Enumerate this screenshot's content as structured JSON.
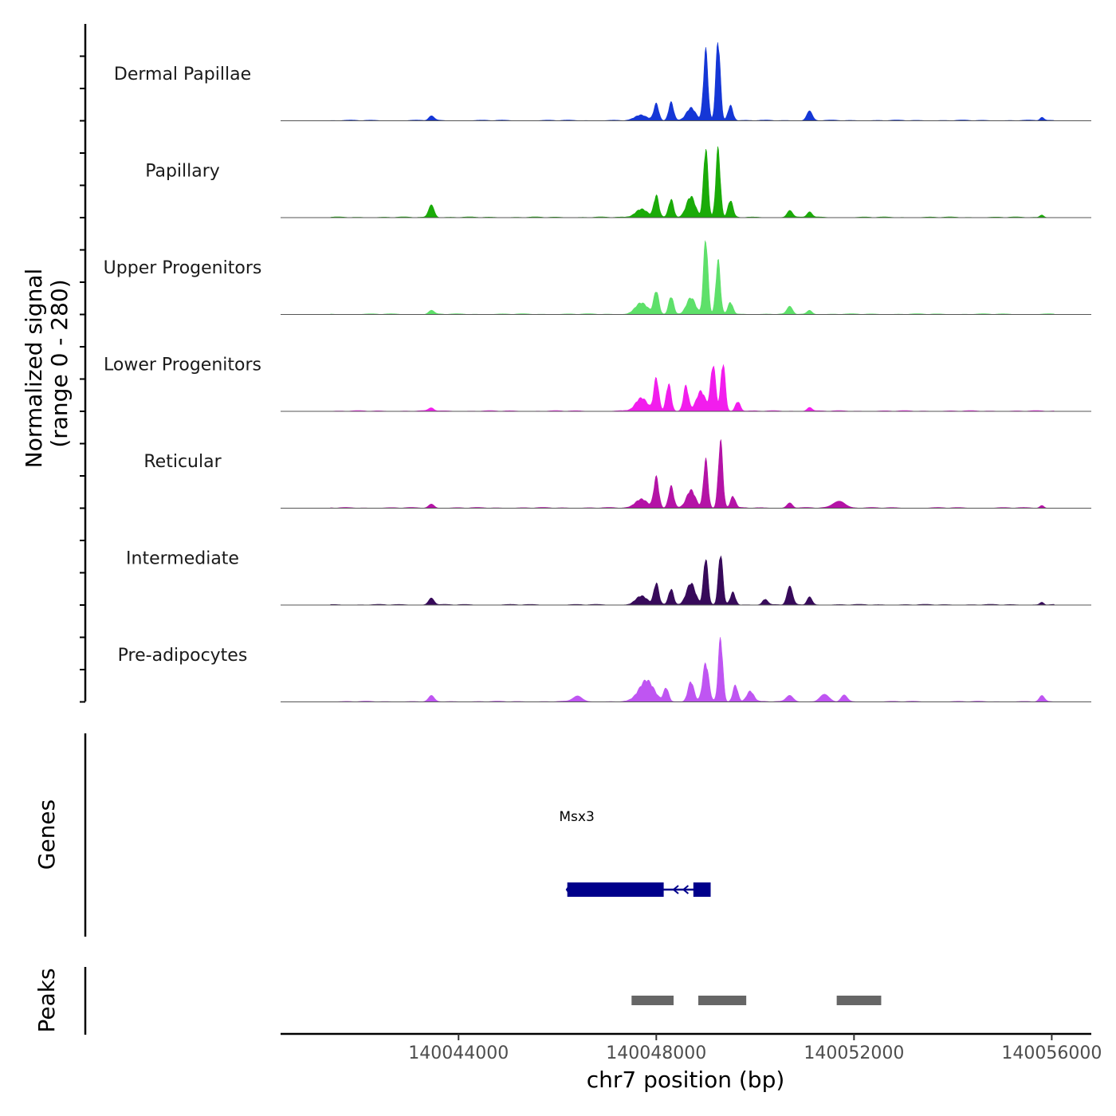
{
  "chart_data": {
    "type": "area",
    "chromosome": "chr7",
    "xlabel": "chr7 position (bp)",
    "x_range": [
      140040400,
      140056800
    ],
    "x_ticks": [
      140044000,
      140048000,
      140052000,
      140056000
    ],
    "x_tick_labels": [
      "140044000",
      "140048000",
      "140052000",
      "140056000"
    ],
    "ylabel_line1": "Normalized signal",
    "ylabel_line2": "(range 0 - 280)",
    "y_range": [
      0,
      280
    ],
    "coverage_tracks": [
      {
        "name": "Dermal Papillae",
        "color": "#1537d6",
        "peaks": [
          [
            140043450,
            14,
            55
          ],
          [
            140047700,
            18,
            120
          ],
          [
            140048000,
            55,
            50
          ],
          [
            140048300,
            60,
            50
          ],
          [
            140048700,
            42,
            90
          ],
          [
            140049000,
            230,
            45
          ],
          [
            140049250,
            265,
            45
          ],
          [
            140049500,
            50,
            50
          ],
          [
            140051100,
            30,
            55
          ],
          [
            140055800,
            10,
            40
          ]
        ]
      },
      {
        "name": "Papillary",
        "color": "#1aab08",
        "peaks": [
          [
            140043450,
            40,
            55
          ],
          [
            140047700,
            28,
            120
          ],
          [
            140048000,
            72,
            50
          ],
          [
            140048300,
            58,
            50
          ],
          [
            140048700,
            68,
            90
          ],
          [
            140049000,
            230,
            45
          ],
          [
            140049250,
            225,
            45
          ],
          [
            140049500,
            55,
            50
          ],
          [
            140050700,
            22,
            55
          ],
          [
            140051100,
            18,
            50
          ],
          [
            140055800,
            8,
            40
          ]
        ]
      },
      {
        "name": "Upper Progenitors",
        "color": "#5ee06a",
        "peaks": [
          [
            140043450,
            12,
            55
          ],
          [
            140047700,
            38,
            120
          ],
          [
            140048000,
            75,
            50
          ],
          [
            140048300,
            58,
            50
          ],
          [
            140048700,
            55,
            90
          ],
          [
            140049000,
            250,
            45
          ],
          [
            140049250,
            175,
            45
          ],
          [
            140049500,
            40,
            50
          ],
          [
            140050700,
            24,
            55
          ],
          [
            140051100,
            12,
            50
          ]
        ]
      },
      {
        "name": "Lower Progenitors",
        "color": "#f21ded",
        "peaks": [
          [
            140043450,
            10,
            55
          ],
          [
            140047700,
            42,
            120
          ],
          [
            140048000,
            108,
            50
          ],
          [
            140048250,
            90,
            50
          ],
          [
            140048600,
            82,
            50
          ],
          [
            140048900,
            65,
            90
          ],
          [
            140049150,
            152,
            50
          ],
          [
            140049350,
            160,
            45
          ],
          [
            140049650,
            32,
            50
          ],
          [
            140051100,
            12,
            50
          ]
        ]
      },
      {
        "name": "Reticular",
        "color": "#b413a6",
        "peaks": [
          [
            140043450,
            12,
            55
          ],
          [
            140047700,
            30,
            120
          ],
          [
            140048000,
            100,
            50
          ],
          [
            140048300,
            70,
            50
          ],
          [
            140048700,
            58,
            90
          ],
          [
            140049000,
            160,
            45
          ],
          [
            140049300,
            220,
            45
          ],
          [
            140049550,
            38,
            50
          ],
          [
            140050700,
            16,
            55
          ],
          [
            140051700,
            22,
            120
          ],
          [
            140055800,
            8,
            40
          ]
        ]
      },
      {
        "name": "Intermediate",
        "color": "#370a5a",
        "peaks": [
          [
            140043450,
            22,
            55
          ],
          [
            140047700,
            28,
            120
          ],
          [
            140048000,
            70,
            50
          ],
          [
            140048300,
            52,
            50
          ],
          [
            140048700,
            72,
            90
          ],
          [
            140049000,
            155,
            45
          ],
          [
            140049300,
            170,
            45
          ],
          [
            140049550,
            40,
            50
          ],
          [
            140050200,
            18,
            55
          ],
          [
            140050700,
            58,
            55
          ],
          [
            140051100,
            25,
            50
          ],
          [
            140055800,
            8,
            40
          ]
        ]
      },
      {
        "name": "Pre-adipocytes",
        "color": "#bf55f2",
        "peaks": [
          [
            140043450,
            18,
            55
          ],
          [
            140046400,
            18,
            90
          ],
          [
            140047800,
            70,
            150
          ],
          [
            140048200,
            45,
            50
          ],
          [
            140048700,
            65,
            60
          ],
          [
            140049000,
            128,
            60
          ],
          [
            140049300,
            210,
            45
          ],
          [
            140049600,
            55,
            50
          ],
          [
            140049900,
            35,
            70
          ],
          [
            140050700,
            20,
            70
          ],
          [
            140051400,
            22,
            90
          ],
          [
            140051800,
            20,
            60
          ],
          [
            140055800,
            18,
            50
          ]
        ]
      }
    ],
    "genes": [
      {
        "name": "Msx3",
        "strand": "-",
        "color": "#00008b",
        "start": 140046200,
        "end": 140049100,
        "exons": [
          [
            140046200,
            140048150
          ],
          [
            140048750,
            140049100
          ]
        ]
      }
    ],
    "gene_track_label": "Genes",
    "peaks_track_label": "Peaks",
    "peak_color": "#666666",
    "peak_regions": [
      [
        140047500,
        140048350
      ],
      [
        140048850,
        140049820
      ],
      [
        140051650,
        140052550
      ]
    ]
  }
}
